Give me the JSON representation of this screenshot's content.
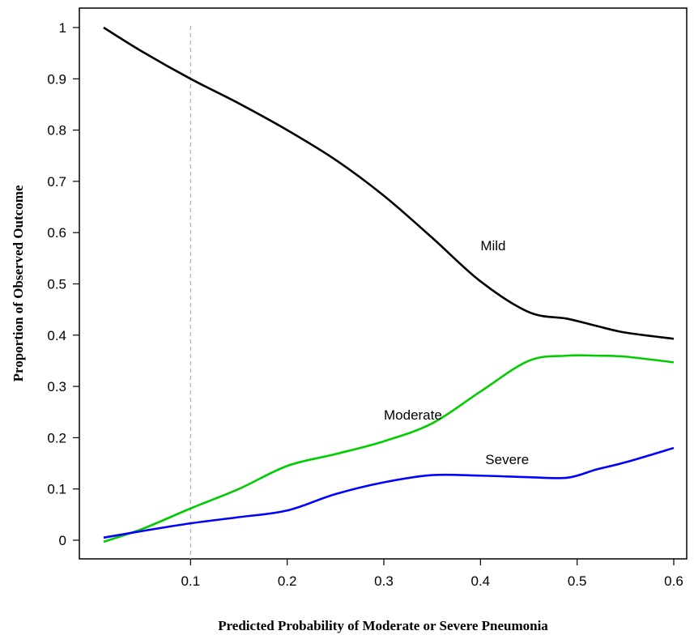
{
  "chart_data": {
    "type": "line",
    "title": "",
    "xlabel": "Predicted Probability of Moderate or Severe Pneumonia",
    "ylabel": "Proportion of Observed Outcome",
    "xlim": [
      0.0,
      0.6
    ],
    "ylim": [
      0.0,
      1.0
    ],
    "x_ticks": [
      "0.1",
      "0.2",
      "0.3",
      "0.4",
      "0.5",
      "0.6"
    ],
    "x_tick_values": [
      0.1,
      0.2,
      0.3,
      0.4,
      0.5,
      0.6
    ],
    "y_ticks": [
      "0",
      "0.1",
      "0.2",
      "0.3",
      "0.4",
      "0.5",
      "0.6",
      "0.7",
      "0.8",
      "0.9",
      "1"
    ],
    "y_tick_values": [
      0,
      0.1,
      0.2,
      0.3,
      0.4,
      0.5,
      0.6,
      0.7,
      0.8,
      0.9,
      1.0
    ],
    "reference_line_x": 0.1,
    "grid": false,
    "legend": "none",
    "series": [
      {
        "name": "Mild",
        "color": "#000000",
        "x": [
          0.01,
          0.05,
          0.1,
          0.15,
          0.2,
          0.25,
          0.3,
          0.35,
          0.4,
          0.45,
          0.49,
          0.52,
          0.55,
          0.6
        ],
        "y": [
          1.0,
          0.953,
          0.9,
          0.852,
          0.8,
          0.742,
          0.672,
          0.59,
          0.505,
          0.445,
          0.432,
          0.418,
          0.405,
          0.393
        ]
      },
      {
        "name": "Moderate",
        "color": "#00cc00",
        "x": [
          0.01,
          0.05,
          0.1,
          0.15,
          0.2,
          0.25,
          0.3,
          0.35,
          0.4,
          0.45,
          0.49,
          0.52,
          0.55,
          0.6
        ],
        "y": [
          -0.003,
          0.022,
          0.062,
          0.1,
          0.145,
          0.168,
          0.193,
          0.228,
          0.29,
          0.35,
          0.36,
          0.36,
          0.358,
          0.347
        ]
      },
      {
        "name": "Severe",
        "color": "#0000ff",
        "x": [
          0.01,
          0.05,
          0.1,
          0.15,
          0.2,
          0.25,
          0.3,
          0.35,
          0.4,
          0.45,
          0.49,
          0.52,
          0.55,
          0.6
        ],
        "y": [
          0.005,
          0.018,
          0.033,
          0.045,
          0.058,
          0.09,
          0.113,
          0.127,
          0.126,
          0.123,
          0.122,
          0.138,
          0.152,
          0.18
        ]
      }
    ],
    "annotations": [
      {
        "text": "Mild",
        "x": 0.4,
        "y": 0.575
      },
      {
        "text": "Moderate",
        "x": 0.3,
        "y": 0.245
      },
      {
        "text": "Severe",
        "x": 0.405,
        "y": 0.158
      }
    ]
  }
}
